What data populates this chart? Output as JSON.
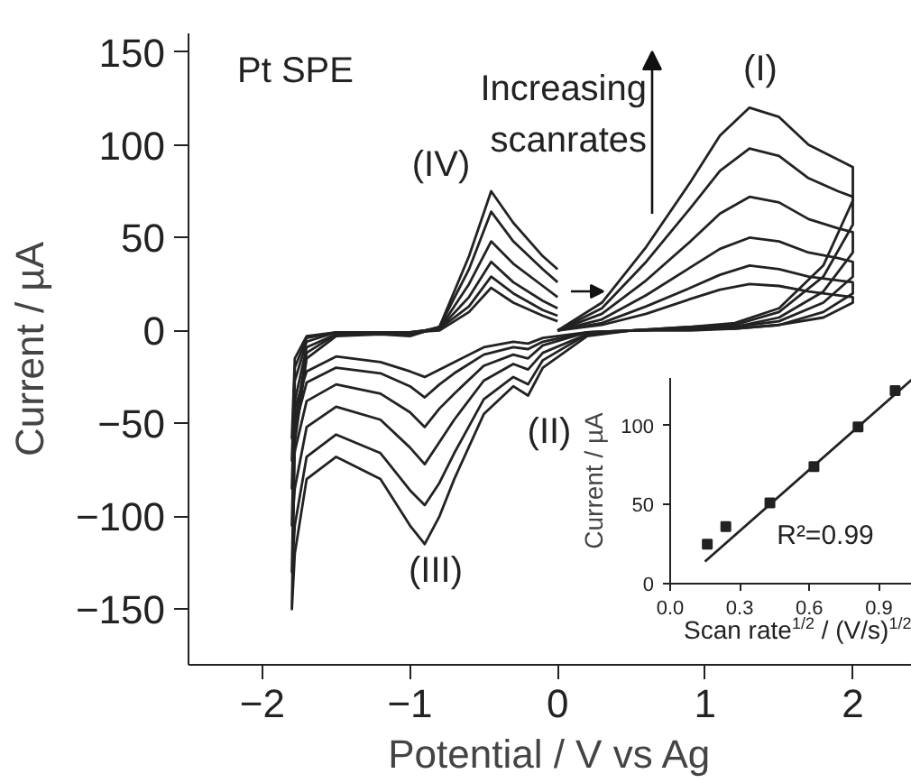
{
  "chart_data": [
    {
      "type": "line",
      "xlabel": "Potential / V vs Ag",
      "ylabel": "Current / µA",
      "xlim": [
        -2.5,
        2.4
      ],
      "ylim": [
        -180,
        160
      ],
      "xticks": [
        -2,
        -1,
        0,
        1,
        2
      ],
      "yticks": [
        -150,
        -100,
        -50,
        0,
        50,
        100,
        150
      ],
      "grid": false,
      "marker": "none",
      "line_style": "solid",
      "x": [
        0,
        0.3,
        0.6,
        0.9,
        1.1,
        1.3,
        1.5,
        1.7,
        1.9,
        2.0,
        2.0,
        1.8,
        1.5,
        1.2,
        0.9,
        0.5,
        0.2,
        -0.1,
        -0.2,
        -0.3,
        -0.5,
        -0.7,
        -0.8,
        -0.9,
        -1.0,
        -1.2,
        -1.5,
        -1.7,
        -1.78,
        -1.8,
        -1.78,
        -1.7,
        -1.5,
        -1.2,
        -1.0,
        -0.8,
        -0.6,
        -0.45,
        -0.3,
        -0.1,
        0.0
      ],
      "series": [
        {
          "color": "#222222",
          "values": [
            0,
            15,
            45,
            80,
            105,
            120,
            115,
            100,
            92,
            88,
            70,
            35,
            12,
            4,
            2,
            0,
            -3,
            -20,
            -35,
            -30,
            -45,
            -80,
            -100,
            -115,
            -105,
            -80,
            -68,
            -80,
            -120,
            -150,
            -60,
            -15,
            -3,
            -2,
            -3,
            2,
            40,
            75,
            58,
            40,
            33
          ]
        },
        {
          "color": "#222222",
          "values": [
            0,
            12,
            37,
            66,
            86,
            98,
            94,
            82,
            75,
            72,
            57,
            29,
            10,
            3,
            2,
            0,
            -2,
            -16,
            -29,
            -25,
            -37,
            -66,
            -82,
            -94,
            -86,
            -66,
            -56,
            -68,
            -105,
            -130,
            -50,
            -12,
            -2,
            -2,
            -2,
            2,
            33,
            64,
            48,
            33,
            26
          ]
        },
        {
          "color": "#222222",
          "values": [
            0,
            9,
            27,
            48,
            63,
            72,
            69,
            60,
            55,
            53,
            42,
            21,
            7,
            2,
            1,
            0,
            -2,
            -12,
            -21,
            -18,
            -27,
            -48,
            -60,
            -72,
            -63,
            -48,
            -41,
            -52,
            -85,
            -105,
            -38,
            -9,
            -2,
            -1,
            -2,
            1,
            25,
            48,
            36,
            24,
            18
          ]
        },
        {
          "color": "#222222",
          "values": [
            0,
            6,
            19,
            34,
            44,
            50,
            48,
            42,
            39,
            37,
            29,
            15,
            5,
            2,
            1,
            0,
            -1,
            -8,
            -15,
            -13,
            -19,
            -34,
            -42,
            -52,
            -44,
            -34,
            -29,
            -38,
            -65,
            -85,
            -27,
            -6,
            -1,
            -1,
            -1,
            1,
            18,
            37,
            26,
            16,
            12
          ]
        },
        {
          "color": "#222222",
          "values": [
            0,
            4,
            13,
            23,
            30,
            35,
            33,
            29,
            27,
            26,
            20,
            10,
            3,
            1,
            1,
            0,
            -1,
            -6,
            -10,
            -9,
            -13,
            -23,
            -29,
            -36,
            -30,
            -23,
            -20,
            -28,
            -52,
            -70,
            -20,
            -4,
            -1,
            -1,
            -1,
            1,
            13,
            29,
            20,
            11,
            8
          ]
        },
        {
          "color": "#222222",
          "values": [
            0,
            3,
            9,
            17,
            22,
            25,
            24,
            21,
            19,
            18,
            15,
            7,
            3,
            1,
            0,
            0,
            -1,
            -4,
            -7,
            -6,
            -9,
            -17,
            -21,
            -25,
            -22,
            -17,
            -14,
            -22,
            -42,
            -58,
            -15,
            -3,
            -1,
            -1,
            -1,
            0,
            10,
            23,
            15,
            8,
            5
          ]
        }
      ],
      "annotations": [
        "Pt SPE",
        "Increasing\nscanrates",
        "(I)",
        "(II)",
        "(III)",
        "(IV)"
      ]
    },
    {
      "type": "scatter",
      "xlabel": "Scan rate$^{1/2}$ / (V/s)$^{1/2}$",
      "ylabel": "Current / µA",
      "xlim": [
        0,
        1.05
      ],
      "ylim": [
        0,
        130
      ],
      "xticks": [
        {
          "value": 0,
          "label": "0.0"
        },
        0.3,
        0.6,
        0.9
      ],
      "yticks": [
        0,
        50,
        100
      ],
      "grid": false,
      "series": [
        {
          "type": "scatter",
          "marker": "square",
          "color": "#222222",
          "x": [
            0.16,
            0.24,
            0.43,
            0.62,
            0.81,
            0.97
          ],
          "values": [
            25,
            36,
            51,
            74,
            99,
            122
          ]
        },
        {
          "type": "line",
          "color": "#222222",
          "x": [
            0.15,
            1.05
          ],
          "values": [
            14,
            130
          ]
        }
      ],
      "annotations": [
        "R²=0.99"
      ]
    }
  ]
}
